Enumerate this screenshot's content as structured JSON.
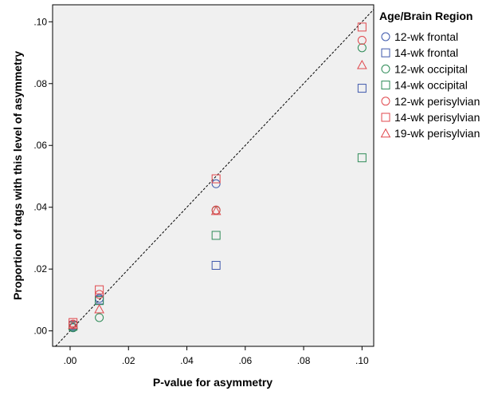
{
  "chart_data": {
    "type": "scatter",
    "xlabel": "P-value for asymmetry",
    "ylabel": "Proportion of tags with this level of asymmetry",
    "xlim": [
      -0.006,
      0.104
    ],
    "ylim": [
      -0.005,
      0.1055
    ],
    "x_ticks": [
      ".00",
      ".02",
      ".04",
      ".06",
      ".08",
      ".10"
    ],
    "x_tick_values": [
      0,
      0.02,
      0.04,
      0.06,
      0.08,
      0.1
    ],
    "y_ticks": [
      ".00",
      ".02",
      ".04",
      ".06",
      ".08",
      ".10"
    ],
    "y_tick_values": [
      0,
      0.02,
      0.04,
      0.06,
      0.08,
      0.1
    ],
    "reference_line": "y = x (dashed diagonal)",
    "grid": false,
    "plot_background": "#f0f0f0",
    "legend": {
      "title": "Age/Brain Region",
      "position": "right"
    },
    "series": [
      {
        "name": "12-wk frontal",
        "marker": "circle",
        "color": "#3e58ac",
        "points": [
          [
            0.001,
            0.0012
          ],
          [
            0.01,
            0.0105
          ],
          [
            0.05,
            0.0476
          ]
        ]
      },
      {
        "name": "14-wk frontal",
        "marker": "square",
        "color": "#3e58ac",
        "points": [
          [
            0.001,
            0.0018
          ],
          [
            0.01,
            0.01
          ],
          [
            0.05,
            0.0212
          ],
          [
            0.1,
            0.0785
          ]
        ]
      },
      {
        "name": "12-wk occipital",
        "marker": "circle",
        "color": "#2e8b57",
        "points": [
          [
            0.001,
            0.001
          ],
          [
            0.01,
            0.0043
          ],
          [
            0.05,
            0.039
          ],
          [
            0.1,
            0.0916
          ]
        ]
      },
      {
        "name": "14-wk occipital",
        "marker": "square",
        "color": "#2e8b57",
        "points": [
          [
            0.001,
            0.0015
          ],
          [
            0.01,
            0.0098
          ],
          [
            0.05,
            0.0309
          ],
          [
            0.1,
            0.056
          ]
        ]
      },
      {
        "name": "12-wk perisylvian",
        "marker": "circle",
        "color": "#e0474c",
        "points": [
          [
            0.001,
            0.0022
          ],
          [
            0.01,
            0.0118
          ],
          [
            0.05,
            0.0391
          ],
          [
            0.1,
            0.094
          ]
        ]
      },
      {
        "name": "14-wk perisylvian",
        "marker": "square",
        "color": "#e0474c",
        "points": [
          [
            0.001,
            0.0027
          ],
          [
            0.01,
            0.0133
          ],
          [
            0.05,
            0.0492
          ],
          [
            0.1,
            0.0983
          ]
        ]
      },
      {
        "name": "19-wk perisylvian",
        "marker": "triangle",
        "color": "#e0474c",
        "points": [
          [
            0.001,
            0.0019
          ],
          [
            0.01,
            0.007
          ],
          [
            0.05,
            0.0388
          ],
          [
            0.1,
            0.086
          ]
        ]
      }
    ]
  }
}
